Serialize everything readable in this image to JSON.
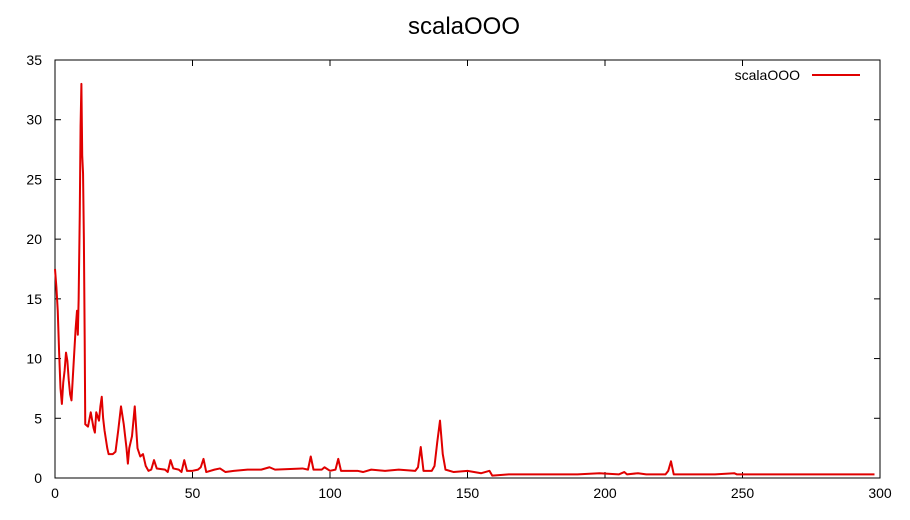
{
  "chart_data": {
    "type": "line",
    "title": "scalaOOO",
    "xlabel": "",
    "ylabel": "",
    "xlim": [
      0,
      300
    ],
    "ylim": [
      0,
      35
    ],
    "xticks": [
      0,
      50,
      100,
      150,
      200,
      250,
      300
    ],
    "yticks": [
      0,
      5,
      10,
      15,
      20,
      25,
      30,
      35
    ],
    "grid": false,
    "legend": "top-right",
    "series": [
      {
        "name": "scalaOOO",
        "color": "#e00000",
        "points": [
          [
            0,
            17.5
          ],
          [
            0.5,
            16.0
          ],
          [
            1,
            14.0
          ],
          [
            1.5,
            10.5
          ],
          [
            2,
            7.5
          ],
          [
            2.5,
            6.2
          ],
          [
            3,
            8.0
          ],
          [
            3.5,
            9.0
          ],
          [
            4,
            10.5
          ],
          [
            4.5,
            9.8
          ],
          [
            5,
            8.2
          ],
          [
            5.5,
            7.0
          ],
          [
            6,
            6.5
          ],
          [
            6.5,
            8.5
          ],
          [
            7,
            10.5
          ],
          [
            7.5,
            12.5
          ],
          [
            8,
            14.0
          ],
          [
            8.3,
            12.0
          ],
          [
            8.6,
            15.0
          ],
          [
            9,
            22.0
          ],
          [
            9.3,
            29.5
          ],
          [
            9.6,
            33.0
          ],
          [
            9.9,
            27.0
          ],
          [
            10.2,
            25.5
          ],
          [
            10.5,
            20.0
          ],
          [
            10.8,
            11.5
          ],
          [
            11,
            4.5
          ],
          [
            12,
            4.3
          ],
          [
            13,
            5.5
          ],
          [
            14,
            4.2
          ],
          [
            14.5,
            3.8
          ],
          [
            15,
            5.5
          ],
          [
            16,
            4.8
          ],
          [
            16.5,
            6.0
          ],
          [
            17,
            6.8
          ],
          [
            17.5,
            5.0
          ],
          [
            18,
            4.0
          ],
          [
            19,
            2.5
          ],
          [
            19.5,
            2.0
          ],
          [
            21,
            2.0
          ],
          [
            22,
            2.2
          ],
          [
            23,
            4.0
          ],
          [
            24,
            6.0
          ],
          [
            25,
            4.5
          ],
          [
            26,
            2.5
          ],
          [
            26.5,
            1.2
          ],
          [
            27,
            2.5
          ],
          [
            28,
            3.5
          ],
          [
            29,
            6.0
          ],
          [
            30,
            2.5
          ],
          [
            31,
            1.8
          ],
          [
            32,
            2.0
          ],
          [
            33,
            1.0
          ],
          [
            34,
            0.6
          ],
          [
            35,
            0.7
          ],
          [
            36,
            1.5
          ],
          [
            37,
            0.8
          ],
          [
            40,
            0.7
          ],
          [
            41,
            0.5
          ],
          [
            42,
            1.5
          ],
          [
            43,
            0.8
          ],
          [
            45,
            0.7
          ],
          [
            46,
            0.5
          ],
          [
            47,
            1.5
          ],
          [
            48,
            0.6
          ],
          [
            50,
            0.6
          ],
          [
            52,
            0.7
          ],
          [
            53,
            0.9
          ],
          [
            54,
            1.6
          ],
          [
            55,
            0.5
          ],
          [
            58,
            0.7
          ],
          [
            60,
            0.8
          ],
          [
            62,
            0.5
          ],
          [
            65,
            0.6
          ],
          [
            70,
            0.7
          ],
          [
            75,
            0.7
          ],
          [
            78,
            0.9
          ],
          [
            80,
            0.7
          ],
          [
            90,
            0.8
          ],
          [
            92,
            0.7
          ],
          [
            93,
            1.8
          ],
          [
            94,
            0.7
          ],
          [
            97,
            0.7
          ],
          [
            98,
            0.9
          ],
          [
            100,
            0.6
          ],
          [
            102,
            0.7
          ],
          [
            103,
            1.6
          ],
          [
            104,
            0.6
          ],
          [
            110,
            0.6
          ],
          [
            112,
            0.5
          ],
          [
            115,
            0.7
          ],
          [
            120,
            0.6
          ],
          [
            125,
            0.7
          ],
          [
            131,
            0.6
          ],
          [
            132,
            0.9
          ],
          [
            133,
            2.6
          ],
          [
            134,
            0.6
          ],
          [
            137,
            0.6
          ],
          [
            138,
            1.0
          ],
          [
            139,
            3.0
          ],
          [
            140,
            4.8
          ],
          [
            141,
            2.0
          ],
          [
            142,
            0.7
          ],
          [
            145,
            0.5
          ],
          [
            150,
            0.6
          ],
          [
            155,
            0.4
          ],
          [
            158,
            0.6
          ],
          [
            159,
            0.2
          ],
          [
            165,
            0.3
          ],
          [
            175,
            0.3
          ],
          [
            180,
            0.3
          ],
          [
            190,
            0.3
          ],
          [
            198,
            0.4
          ],
          [
            205,
            0.3
          ],
          [
            207,
            0.5
          ],
          [
            208,
            0.3
          ],
          [
            212,
            0.4
          ],
          [
            215,
            0.3
          ],
          [
            220,
            0.3
          ],
          [
            222,
            0.3
          ],
          [
            223,
            0.6
          ],
          [
            224,
            1.4
          ],
          [
            225,
            0.3
          ],
          [
            230,
            0.3
          ],
          [
            240,
            0.3
          ],
          [
            247,
            0.4
          ],
          [
            248,
            0.3
          ],
          [
            260,
            0.3
          ],
          [
            270,
            0.3
          ],
          [
            280,
            0.3
          ],
          [
            290,
            0.3
          ],
          [
            298,
            0.3
          ]
        ]
      }
    ]
  }
}
